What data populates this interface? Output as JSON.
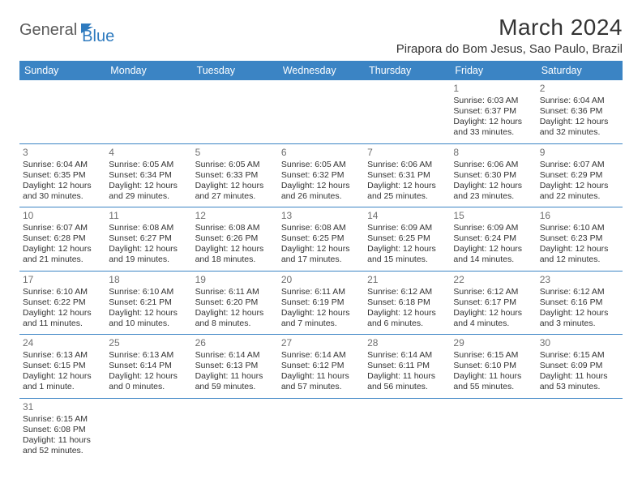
{
  "brand": {
    "text1": "General",
    "text2": "Blue",
    "color_general": "#5b5b5b",
    "color_blue": "#2f7bbf",
    "flag_color": "#2f7bbf"
  },
  "title": {
    "month_year": "March 2024",
    "location": "Pirapora do Bom Jesus, Sao Paulo, Brazil",
    "fontsize_month": 28,
    "fontsize_location": 15
  },
  "colors": {
    "header_bg": "#3b84c4",
    "header_text": "#ffffff",
    "border": "#3b84c4",
    "daynum": "#707070",
    "body_text": "#333333",
    "background": "#ffffff"
  },
  "weekdays": [
    "Sunday",
    "Monday",
    "Tuesday",
    "Wednesday",
    "Thursday",
    "Friday",
    "Saturday"
  ],
  "weeks": [
    [
      null,
      null,
      null,
      null,
      null,
      {
        "n": "1",
        "r": "Sunrise: 6:03 AM",
        "s": "Sunset: 6:37 PM",
        "d1": "Daylight: 12 hours",
        "d2": "and 33 minutes."
      },
      {
        "n": "2",
        "r": "Sunrise: 6:04 AM",
        "s": "Sunset: 6:36 PM",
        "d1": "Daylight: 12 hours",
        "d2": "and 32 minutes."
      }
    ],
    [
      {
        "n": "3",
        "r": "Sunrise: 6:04 AM",
        "s": "Sunset: 6:35 PM",
        "d1": "Daylight: 12 hours",
        "d2": "and 30 minutes."
      },
      {
        "n": "4",
        "r": "Sunrise: 6:05 AM",
        "s": "Sunset: 6:34 PM",
        "d1": "Daylight: 12 hours",
        "d2": "and 29 minutes."
      },
      {
        "n": "5",
        "r": "Sunrise: 6:05 AM",
        "s": "Sunset: 6:33 PM",
        "d1": "Daylight: 12 hours",
        "d2": "and 27 minutes."
      },
      {
        "n": "6",
        "r": "Sunrise: 6:05 AM",
        "s": "Sunset: 6:32 PM",
        "d1": "Daylight: 12 hours",
        "d2": "and 26 minutes."
      },
      {
        "n": "7",
        "r": "Sunrise: 6:06 AM",
        "s": "Sunset: 6:31 PM",
        "d1": "Daylight: 12 hours",
        "d2": "and 25 minutes."
      },
      {
        "n": "8",
        "r": "Sunrise: 6:06 AM",
        "s": "Sunset: 6:30 PM",
        "d1": "Daylight: 12 hours",
        "d2": "and 23 minutes."
      },
      {
        "n": "9",
        "r": "Sunrise: 6:07 AM",
        "s": "Sunset: 6:29 PM",
        "d1": "Daylight: 12 hours",
        "d2": "and 22 minutes."
      }
    ],
    [
      {
        "n": "10",
        "r": "Sunrise: 6:07 AM",
        "s": "Sunset: 6:28 PM",
        "d1": "Daylight: 12 hours",
        "d2": "and 21 minutes."
      },
      {
        "n": "11",
        "r": "Sunrise: 6:08 AM",
        "s": "Sunset: 6:27 PM",
        "d1": "Daylight: 12 hours",
        "d2": "and 19 minutes."
      },
      {
        "n": "12",
        "r": "Sunrise: 6:08 AM",
        "s": "Sunset: 6:26 PM",
        "d1": "Daylight: 12 hours",
        "d2": "and 18 minutes."
      },
      {
        "n": "13",
        "r": "Sunrise: 6:08 AM",
        "s": "Sunset: 6:25 PM",
        "d1": "Daylight: 12 hours",
        "d2": "and 17 minutes."
      },
      {
        "n": "14",
        "r": "Sunrise: 6:09 AM",
        "s": "Sunset: 6:25 PM",
        "d1": "Daylight: 12 hours",
        "d2": "and 15 minutes."
      },
      {
        "n": "15",
        "r": "Sunrise: 6:09 AM",
        "s": "Sunset: 6:24 PM",
        "d1": "Daylight: 12 hours",
        "d2": "and 14 minutes."
      },
      {
        "n": "16",
        "r": "Sunrise: 6:10 AM",
        "s": "Sunset: 6:23 PM",
        "d1": "Daylight: 12 hours",
        "d2": "and 12 minutes."
      }
    ],
    [
      {
        "n": "17",
        "r": "Sunrise: 6:10 AM",
        "s": "Sunset: 6:22 PM",
        "d1": "Daylight: 12 hours",
        "d2": "and 11 minutes."
      },
      {
        "n": "18",
        "r": "Sunrise: 6:10 AM",
        "s": "Sunset: 6:21 PM",
        "d1": "Daylight: 12 hours",
        "d2": "and 10 minutes."
      },
      {
        "n": "19",
        "r": "Sunrise: 6:11 AM",
        "s": "Sunset: 6:20 PM",
        "d1": "Daylight: 12 hours",
        "d2": "and 8 minutes."
      },
      {
        "n": "20",
        "r": "Sunrise: 6:11 AM",
        "s": "Sunset: 6:19 PM",
        "d1": "Daylight: 12 hours",
        "d2": "and 7 minutes."
      },
      {
        "n": "21",
        "r": "Sunrise: 6:12 AM",
        "s": "Sunset: 6:18 PM",
        "d1": "Daylight: 12 hours",
        "d2": "and 6 minutes."
      },
      {
        "n": "22",
        "r": "Sunrise: 6:12 AM",
        "s": "Sunset: 6:17 PM",
        "d1": "Daylight: 12 hours",
        "d2": "and 4 minutes."
      },
      {
        "n": "23",
        "r": "Sunrise: 6:12 AM",
        "s": "Sunset: 6:16 PM",
        "d1": "Daylight: 12 hours",
        "d2": "and 3 minutes."
      }
    ],
    [
      {
        "n": "24",
        "r": "Sunrise: 6:13 AM",
        "s": "Sunset: 6:15 PM",
        "d1": "Daylight: 12 hours",
        "d2": "and 1 minute."
      },
      {
        "n": "25",
        "r": "Sunrise: 6:13 AM",
        "s": "Sunset: 6:14 PM",
        "d1": "Daylight: 12 hours",
        "d2": "and 0 minutes."
      },
      {
        "n": "26",
        "r": "Sunrise: 6:14 AM",
        "s": "Sunset: 6:13 PM",
        "d1": "Daylight: 11 hours",
        "d2": "and 59 minutes."
      },
      {
        "n": "27",
        "r": "Sunrise: 6:14 AM",
        "s": "Sunset: 6:12 PM",
        "d1": "Daylight: 11 hours",
        "d2": "and 57 minutes."
      },
      {
        "n": "28",
        "r": "Sunrise: 6:14 AM",
        "s": "Sunset: 6:11 PM",
        "d1": "Daylight: 11 hours",
        "d2": "and 56 minutes."
      },
      {
        "n": "29",
        "r": "Sunrise: 6:15 AM",
        "s": "Sunset: 6:10 PM",
        "d1": "Daylight: 11 hours",
        "d2": "and 55 minutes."
      },
      {
        "n": "30",
        "r": "Sunrise: 6:15 AM",
        "s": "Sunset: 6:09 PM",
        "d1": "Daylight: 11 hours",
        "d2": "and 53 minutes."
      }
    ],
    [
      {
        "n": "31",
        "r": "Sunrise: 6:15 AM",
        "s": "Sunset: 6:08 PM",
        "d1": "Daylight: 11 hours",
        "d2": "and 52 minutes."
      },
      null,
      null,
      null,
      null,
      null,
      null
    ]
  ]
}
